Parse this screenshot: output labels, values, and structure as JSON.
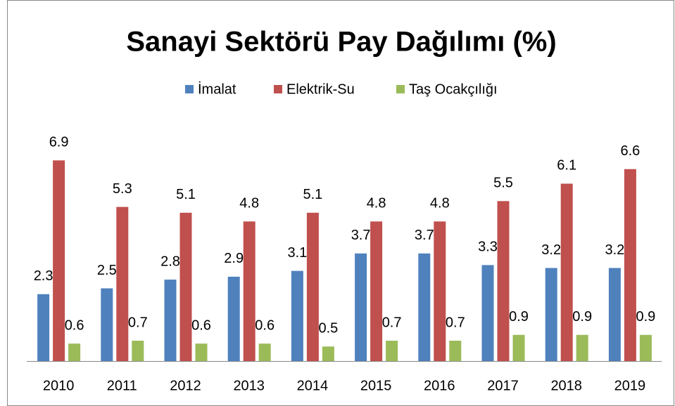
{
  "chart_data": {
    "type": "bar",
    "title": "Sanayi Sektörü Pay Dağılımı (%)",
    "categories": [
      "2010",
      "2011",
      "2012",
      "2013",
      "2014",
      "2015",
      "2016",
      "2017",
      "2018",
      "2019"
    ],
    "series": [
      {
        "name": "İmalat",
        "color": "#4f81bd",
        "values": [
          2.3,
          2.5,
          2.8,
          2.9,
          3.1,
          3.7,
          3.7,
          3.3,
          3.2,
          3.2
        ]
      },
      {
        "name": "Elektrik-Su",
        "color": "#c0504d",
        "values": [
          6.9,
          5.3,
          5.1,
          4.8,
          5.1,
          4.8,
          4.8,
          5.5,
          6.1,
          6.6
        ]
      },
      {
        "name": "Taş Ocakçılığı",
        "color": "#9bbb59",
        "values": [
          0.6,
          0.7,
          0.6,
          0.6,
          0.5,
          0.7,
          0.7,
          0.9,
          0.9,
          0.9
        ]
      }
    ],
    "ylim": [
      0,
      8
    ]
  }
}
